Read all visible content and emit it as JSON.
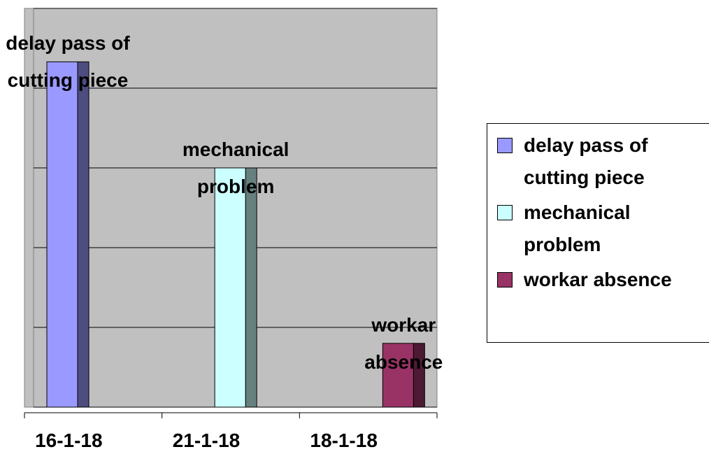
{
  "chart_data": {
    "type": "bar",
    "categories": [
      "16-1-18",
      "21-1-18",
      "18-1-18"
    ],
    "series": [
      {
        "name": "delay pass of cutting piece",
        "color": "#9999ff",
        "values": [
          4.33,
          null,
          null
        ]
      },
      {
        "name": "mechanical problem",
        "color": "#ccffff",
        "values": [
          null,
          3,
          null
        ]
      },
      {
        "name": "workar absence",
        "color": "#993366",
        "values": [
          null,
          null,
          0.8
        ]
      }
    ],
    "ylim": [
      0,
      5
    ],
    "yticks": [
      0,
      1,
      2,
      3,
      4,
      5
    ],
    "grid": true,
    "legend": "right"
  }
}
